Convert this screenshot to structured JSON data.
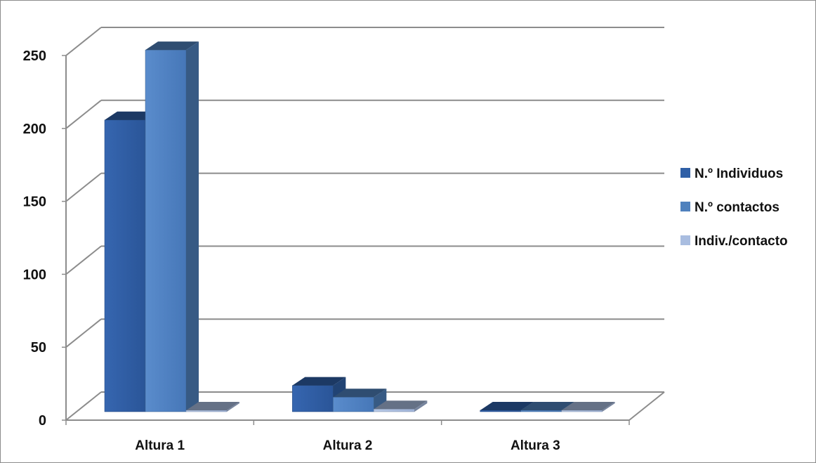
{
  "chart_data": {
    "type": "bar",
    "categories": [
      "Altura 1",
      "Altura 2",
      "Altura 3"
    ],
    "series": [
      {
        "name": "N.º Individuos",
        "values": [
          200,
          18,
          0
        ],
        "color": "#2f5fa6"
      },
      {
        "name": "N.º contactos",
        "values": [
          248,
          10,
          0
        ],
        "color": "#4f81bd"
      },
      {
        "name": "Indiv./contacto",
        "values": [
          0.8,
          1.8,
          0
        ],
        "color": "#a9bde0"
      }
    ],
    "yticks": [
      "0",
      "50",
      "100",
      "150",
      "200",
      "250"
    ],
    "ylim": [
      0,
      250
    ],
    "grid": true,
    "legend_position": "right",
    "three_d": true
  }
}
